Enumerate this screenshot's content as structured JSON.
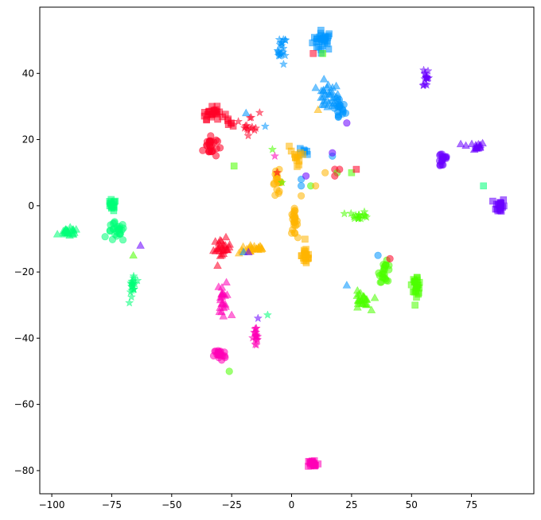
{
  "chart_data": {
    "type": "scatter",
    "title": "",
    "xlabel": "",
    "ylabel": "",
    "xlim": [
      -105,
      101
    ],
    "ylim": [
      -87,
      60
    ],
    "xticks": [
      -100,
      -75,
      -50,
      -25,
      0,
      25,
      50,
      75
    ],
    "yticks": [
      -80,
      -60,
      -40,
      -20,
      0,
      20,
      40
    ],
    "grid": false,
    "legend": "none",
    "marker_opacity": 0.55,
    "clusters": [
      {
        "color": "#0095ff",
        "marker": "square",
        "center": [
          13,
          50
        ],
        "spread": [
          3.5,
          2.5
        ],
        "count": 30
      },
      {
        "color": "#0095ff",
        "marker": "star",
        "center": [
          -4,
          47
        ],
        "spread": [
          1.5,
          3.5
        ],
        "count": 20
      },
      {
        "color": "#0095ff",
        "marker": "triangle",
        "center": [
          15,
          33
        ],
        "spread": [
          4,
          3.5
        ],
        "count": 28
      },
      {
        "color": "#0095ff",
        "marker": "circle",
        "center": [
          20,
          29
        ],
        "spread": [
          2,
          3
        ],
        "count": 20
      },
      {
        "color": "#0095ff",
        "marker": "square",
        "center": [
          5,
          16
        ],
        "spread": [
          2,
          1
        ],
        "count": 7
      },
      {
        "color": "#6a00ff",
        "marker": "star",
        "center": [
          56,
          39
        ],
        "spread": [
          1,
          3
        ],
        "count": 16
      },
      {
        "color": "#6a00ff",
        "marker": "triangle",
        "center": [
          76,
          18
        ],
        "spread": [
          4,
          1
        ],
        "count": 16
      },
      {
        "color": "#6a00ff",
        "marker": "circle",
        "center": [
          63,
          14
        ],
        "spread": [
          2,
          2.5
        ],
        "count": 18
      },
      {
        "color": "#6a00ff",
        "marker": "square",
        "center": [
          87,
          0
        ],
        "spread": [
          1.5,
          2
        ],
        "count": 22
      },
      {
        "color": "#ff0027",
        "marker": "square",
        "center": [
          -33,
          28
        ],
        "spread": [
          4,
          1.5
        ],
        "count": 26
      },
      {
        "color": "#ff0027",
        "marker": "square",
        "center": [
          -25,
          25
        ],
        "spread": [
          1.5,
          1
        ],
        "count": 5
      },
      {
        "color": "#ff0027",
        "marker": "circle",
        "center": [
          -34,
          18
        ],
        "spread": [
          2.5,
          3
        ],
        "count": 26
      },
      {
        "color": "#ff0027",
        "marker": "star",
        "center": [
          -17,
          25
        ],
        "spread": [
          3,
          3
        ],
        "count": 14
      },
      {
        "color": "#ff0027",
        "marker": "triangle",
        "center": [
          -29,
          -13
        ],
        "spread": [
          3,
          2.5
        ],
        "count": 26
      },
      {
        "color": "#ffb500",
        "marker": "square",
        "center": [
          3,
          15
        ],
        "spread": [
          3,
          2
        ],
        "count": 12
      },
      {
        "color": "#ffb500",
        "marker": "circle",
        "center": [
          -6,
          7
        ],
        "spread": [
          1.5,
          3
        ],
        "count": 18
      },
      {
        "color": "#ffb500",
        "marker": "circle",
        "center": [
          1,
          -5
        ],
        "spread": [
          1.2,
          3
        ],
        "count": 24
      },
      {
        "color": "#ffb500",
        "marker": "triangle",
        "center": [
          -16,
          -13
        ],
        "spread": [
          5,
          1.2
        ],
        "count": 26
      },
      {
        "color": "#ffb500",
        "marker": "square",
        "center": [
          6,
          -15
        ],
        "spread": [
          1.5,
          2.5
        ],
        "count": 22
      },
      {
        "color": "#00ff78",
        "marker": "square",
        "center": [
          -75,
          0
        ],
        "spread": [
          1.5,
          1.5
        ],
        "count": 18
      },
      {
        "color": "#00ff78",
        "marker": "circle",
        "center": [
          -73,
          -8
        ],
        "spread": [
          3,
          2.5
        ],
        "count": 26
      },
      {
        "color": "#00ff78",
        "marker": "triangle",
        "center": [
          -93,
          -8
        ],
        "spread": [
          3.5,
          1
        ],
        "count": 24
      },
      {
        "color": "#00ff78",
        "marker": "star",
        "center": [
          -66,
          -24
        ],
        "spread": [
          1.2,
          3.5
        ],
        "count": 20
      },
      {
        "color": "#4cff00",
        "marker": "star",
        "center": [
          28,
          -3
        ],
        "spread": [
          3.5,
          1
        ],
        "count": 16
      },
      {
        "color": "#4cff00",
        "marker": "circle",
        "center": [
          39,
          -20
        ],
        "spread": [
          2,
          2.5
        ],
        "count": 24
      },
      {
        "color": "#4cff00",
        "marker": "square",
        "center": [
          52,
          -24
        ],
        "spread": [
          1.5,
          2.5
        ],
        "count": 26
      },
      {
        "color": "#4cff00",
        "marker": "triangle",
        "center": [
          29,
          -29
        ],
        "spread": [
          3,
          2.5
        ],
        "count": 24
      },
      {
        "color": "#ff00b6",
        "marker": "triangle",
        "center": [
          -29,
          -28
        ],
        "spread": [
          1.5,
          4
        ],
        "count": 22
      },
      {
        "color": "#ff00b6",
        "marker": "star",
        "center": [
          -15,
          -40
        ],
        "spread": [
          1,
          3
        ],
        "count": 18
      },
      {
        "color": "#ff00b6",
        "marker": "circle",
        "center": [
          -30,
          -45
        ],
        "spread": [
          2,
          1.5
        ],
        "count": 22
      },
      {
        "color": "#ff00b6",
        "marker": "square",
        "center": [
          9,
          -78
        ],
        "spread": [
          2,
          1.2
        ],
        "count": 22
      }
    ],
    "points": [
      {
        "x": -63,
        "y": -12,
        "color": "#6a00ff",
        "marker": "triangle"
      },
      {
        "x": -66,
        "y": -15,
        "color": "#4cff00",
        "marker": "triangle"
      },
      {
        "x": -24,
        "y": 12,
        "color": "#4cff00",
        "marker": "square"
      },
      {
        "x": -26,
        "y": -50,
        "color": "#4cff00",
        "marker": "circle"
      },
      {
        "x": -25,
        "y": -33,
        "color": "#ff00b6",
        "marker": "triangle"
      },
      {
        "x": -20,
        "y": -14,
        "color": "#0095ff",
        "marker": "triangle"
      },
      {
        "x": -18,
        "y": -14,
        "color": "#6a00ff",
        "marker": "triangle"
      },
      {
        "x": -19,
        "y": 28,
        "color": "#0095ff",
        "marker": "triangle"
      },
      {
        "x": -11,
        "y": 24,
        "color": "#0095ff",
        "marker": "star"
      },
      {
        "x": -14,
        "y": -34,
        "color": "#6a00ff",
        "marker": "star"
      },
      {
        "x": -10,
        "y": -33,
        "color": "#00ff78",
        "marker": "star"
      },
      {
        "x": -8,
        "y": 17,
        "color": "#4cff00",
        "marker": "star"
      },
      {
        "x": -7,
        "y": 15,
        "color": "#ff00b6",
        "marker": "star"
      },
      {
        "x": -4,
        "y": 7,
        "color": "#4cff00",
        "marker": "star"
      },
      {
        "x": -6,
        "y": 10,
        "color": "#ff0027",
        "marker": "star"
      },
      {
        "x": -1,
        "y": 18,
        "color": "#ffb500",
        "marker": "square"
      },
      {
        "x": 4,
        "y": 8,
        "color": "#0095ff",
        "marker": "circle"
      },
      {
        "x": 4,
        "y": 6,
        "color": "#0095ff",
        "marker": "circle"
      },
      {
        "x": 6,
        "y": 9,
        "color": "#6a00ff",
        "marker": "circle"
      },
      {
        "x": 8,
        "y": 6,
        "color": "#4cff00",
        "marker": "circle"
      },
      {
        "x": 10,
        "y": 6,
        "color": "#ffb500",
        "marker": "circle"
      },
      {
        "x": 4,
        "y": 3,
        "color": "#ffb500",
        "marker": "circle"
      },
      {
        "x": 9,
        "y": 46,
        "color": "#ff0027",
        "marker": "square"
      },
      {
        "x": 13,
        "y": 46,
        "color": "#4cff00",
        "marker": "square"
      },
      {
        "x": 11,
        "y": 29,
        "color": "#ffb500",
        "marker": "triangle"
      },
      {
        "x": 14,
        "y": 10,
        "color": "#ffb500",
        "marker": "circle"
      },
      {
        "x": 17,
        "y": 15,
        "color": "#0095ff",
        "marker": "circle"
      },
      {
        "x": 17,
        "y": 16,
        "color": "#6a00ff",
        "marker": "circle"
      },
      {
        "x": 18,
        "y": 11,
        "color": "#ff0027",
        "marker": "circle"
      },
      {
        "x": 19,
        "y": 10,
        "color": "#4cff00",
        "marker": "circle"
      },
      {
        "x": 18,
        "y": 9,
        "color": "#ff0027",
        "marker": "circle"
      },
      {
        "x": 20,
        "y": 11,
        "color": "#ff0027",
        "marker": "circle"
      },
      {
        "x": 23,
        "y": 25,
        "color": "#6a00ff",
        "marker": "circle"
      },
      {
        "x": 25,
        "y": 10,
        "color": "#4cff00",
        "marker": "square"
      },
      {
        "x": 27,
        "y": 11,
        "color": "#ff0027",
        "marker": "square"
      },
      {
        "x": 23,
        "y": -24,
        "color": "#0095ff",
        "marker": "triangle"
      },
      {
        "x": 36,
        "y": -15,
        "color": "#0095ff",
        "marker": "circle"
      },
      {
        "x": 41,
        "y": -16,
        "color": "#ff0027",
        "marker": "circle"
      },
      {
        "x": 80,
        "y": 6,
        "color": "#00ff78",
        "marker": "square"
      }
    ]
  }
}
